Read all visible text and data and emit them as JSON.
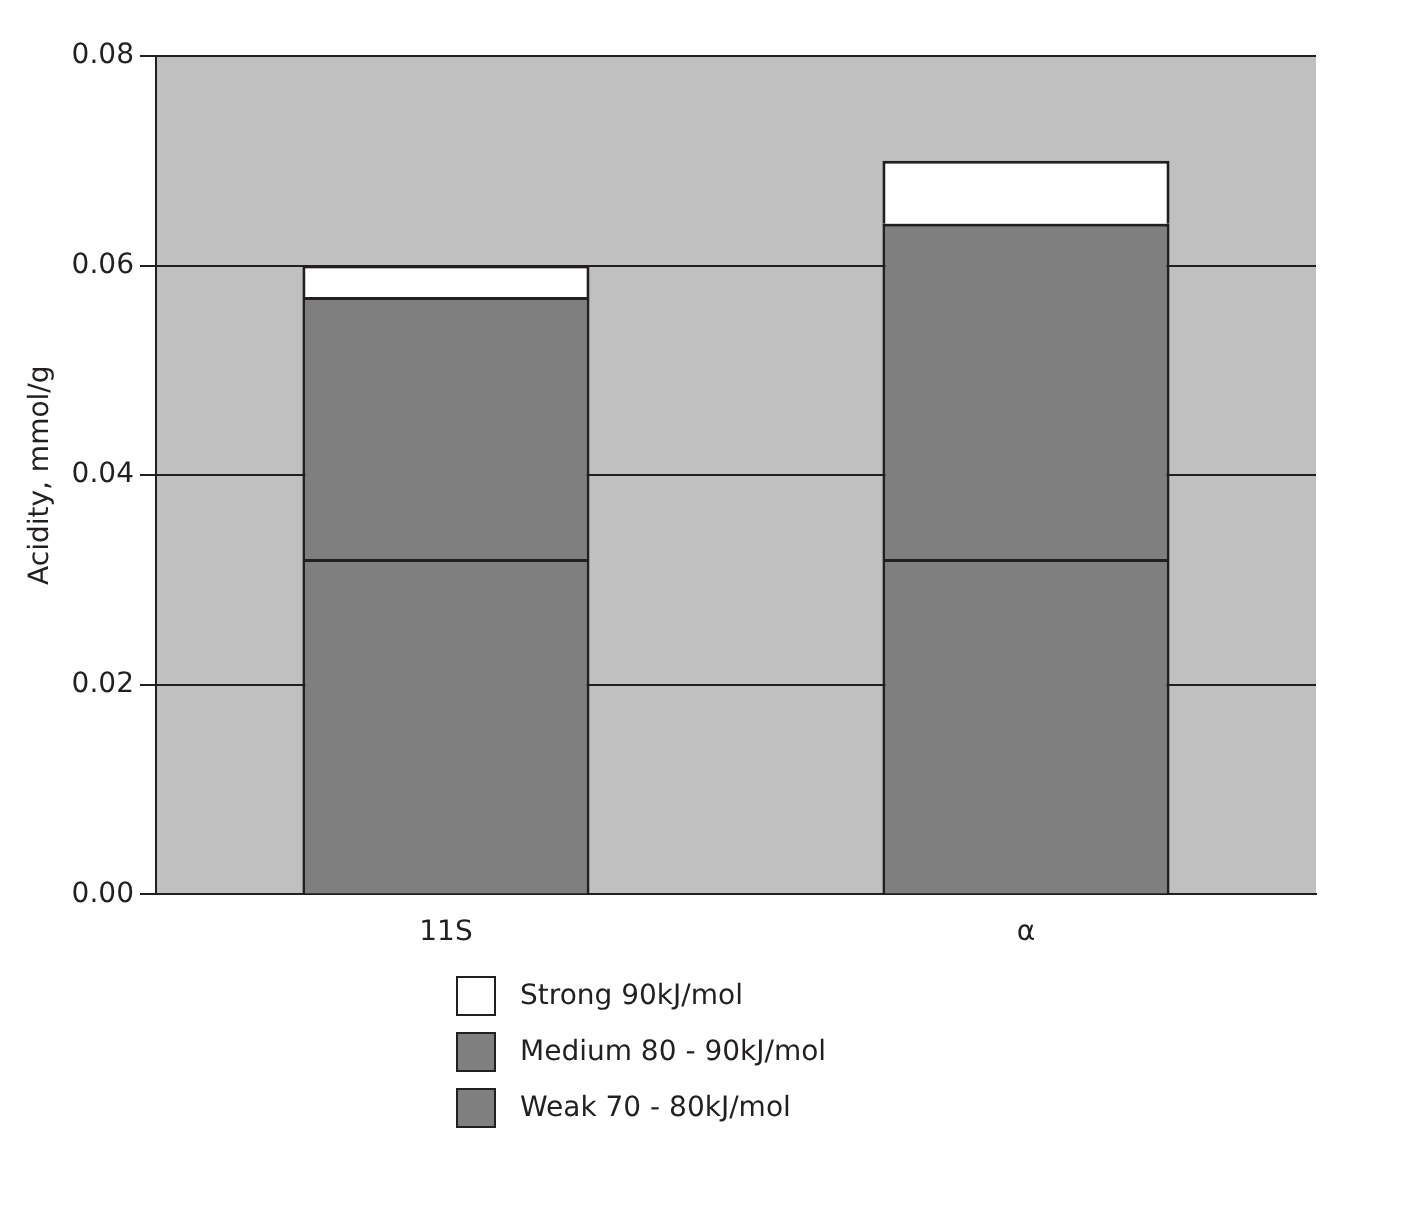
{
  "chart_data": {
    "type": "bar",
    "ylabel": "Acidity, mmol/g",
    "categories": [
      "11S",
      "α"
    ],
    "stacked": true,
    "series": [
      {
        "name": "Weak 70 - 80kJ/mol",
        "color": "#7f7f7f",
        "values": [
          0.032,
          0.032
        ]
      },
      {
        "name": "Medium 80 - 90kJ/mol",
        "color": "#7f7f7f",
        "values": [
          0.025,
          0.032
        ]
      },
      {
        "name": "Strong 90kJ/mol",
        "color": "#ffffff",
        "values": [
          0.003,
          0.006
        ]
      }
    ],
    "ylim": [
      0,
      0.08
    ],
    "yticks": [
      {
        "value": 0,
        "label": "0.00"
      },
      {
        "value": 0.02,
        "label": "0.02"
      },
      {
        "value": 0.04,
        "label": "0.04"
      },
      {
        "value": 0.06,
        "label": "0.06"
      },
      {
        "value": 0.08,
        "label": "0.08"
      }
    ],
    "grid": "y",
    "legend": "bottom"
  }
}
